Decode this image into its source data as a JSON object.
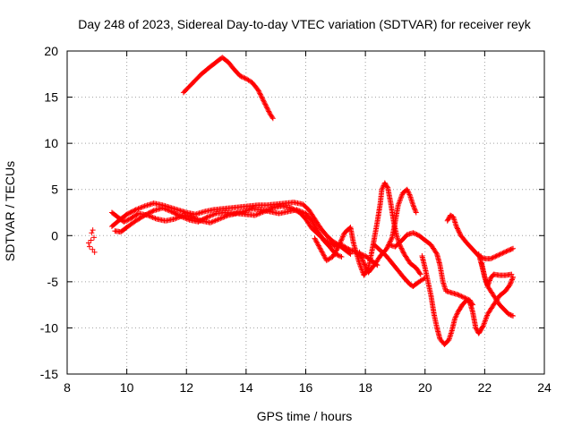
{
  "chart_data": {
    "type": "scatter",
    "title": "Day 248 of 2023, Sidereal Day-to-day VTEC variation (SDTVAR) for receiver reyk",
    "xlabel": "GPS time / hours",
    "ylabel": "SDTVAR / TECUs",
    "xlim": [
      8,
      24
    ],
    "ylim": [
      -15,
      20
    ],
    "xticks": [
      8,
      10,
      12,
      14,
      16,
      18,
      20,
      22,
      24
    ],
    "yticks": [
      -15,
      -10,
      -5,
      0,
      5,
      10,
      15,
      20
    ],
    "grid": true,
    "marker": "+",
    "color": "#ff0000",
    "series": [
      {
        "name": "isolated-points",
        "points": [
          [
            8.72,
            -0.8
          ],
          [
            8.75,
            -1.2
          ],
          [
            8.8,
            -0.5
          ],
          [
            8.82,
            0.3
          ],
          [
            8.85,
            -1.5
          ],
          [
            8.86,
            0.6
          ],
          [
            8.9,
            -0.2
          ],
          [
            8.92,
            -1.8
          ]
        ]
      },
      {
        "name": "sat-high-arc",
        "points": [
          [
            11.9,
            15.5
          ],
          [
            12.2,
            16.5
          ],
          [
            12.5,
            17.5
          ],
          [
            12.8,
            18.3
          ],
          [
            13.0,
            18.8
          ],
          [
            13.2,
            19.3
          ],
          [
            13.4,
            18.8
          ],
          [
            13.6,
            18.0
          ],
          [
            13.8,
            17.3
          ],
          [
            14.0,
            17.0
          ],
          [
            14.2,
            16.6
          ],
          [
            14.4,
            15.8
          ],
          [
            14.6,
            14.5
          ],
          [
            14.8,
            13.2
          ],
          [
            14.9,
            12.7
          ]
        ]
      },
      {
        "name": "sat-a",
        "points": [
          [
            9.5,
            1.0
          ],
          [
            9.8,
            1.8
          ],
          [
            10.0,
            2.3
          ],
          [
            10.3,
            2.8
          ],
          [
            10.6,
            3.2
          ],
          [
            10.9,
            3.5
          ],
          [
            11.2,
            3.3
          ],
          [
            11.5,
            3.0
          ],
          [
            11.8,
            2.7
          ],
          [
            12.0,
            2.5
          ],
          [
            12.3,
            2.3
          ],
          [
            12.6,
            2.6
          ],
          [
            12.9,
            2.8
          ],
          [
            13.2,
            2.9
          ],
          [
            13.5,
            3.0
          ],
          [
            13.8,
            3.1
          ],
          [
            14.1,
            3.2
          ],
          [
            14.4,
            3.3
          ],
          [
            14.7,
            3.3
          ],
          [
            15.0,
            3.4
          ],
          [
            15.3,
            3.5
          ],
          [
            15.6,
            3.6
          ],
          [
            15.9,
            3.4
          ],
          [
            16.1,
            2.8
          ],
          [
            16.3,
            1.8
          ],
          [
            16.5,
            0.8
          ],
          [
            16.7,
            0.0
          ],
          [
            16.9,
            -0.6
          ],
          [
            17.1,
            -1.0
          ],
          [
            17.3,
            -1.5
          ],
          [
            17.5,
            -2.0
          ]
        ]
      },
      {
        "name": "sat-b",
        "points": [
          [
            9.5,
            2.5
          ],
          [
            9.7,
            2.0
          ],
          [
            9.9,
            1.5
          ],
          [
            10.1,
            1.8
          ],
          [
            10.4,
            2.4
          ],
          [
            10.7,
            2.2
          ],
          [
            11.0,
            1.8
          ],
          [
            11.3,
            1.6
          ],
          [
            11.6,
            1.8
          ],
          [
            11.9,
            2.2
          ],
          [
            12.2,
            2.0
          ],
          [
            12.5,
            1.6
          ],
          [
            12.8,
            1.4
          ],
          [
            13.1,
            1.8
          ],
          [
            13.4,
            2.2
          ],
          [
            13.7,
            2.4
          ],
          [
            14.0,
            2.3
          ],
          [
            14.3,
            2.2
          ],
          [
            14.6,
            2.6
          ],
          [
            14.9,
            3.0
          ],
          [
            15.2,
            3.2
          ],
          [
            15.5,
            3.0
          ],
          [
            15.8,
            2.5
          ],
          [
            16.0,
            1.8
          ],
          [
            16.2,
            0.8
          ],
          [
            16.4,
            0.2
          ],
          [
            16.6,
            -0.4
          ],
          [
            16.8,
            -0.8
          ],
          [
            17.0,
            -1.2
          ],
          [
            17.2,
            -1.0
          ],
          [
            17.4,
            -1.4
          ],
          [
            17.6,
            -1.7
          ],
          [
            17.8,
            -2.0
          ],
          [
            18.0,
            -2.2
          ],
          [
            18.2,
            -2.7
          ],
          [
            18.4,
            -3.2
          ]
        ]
      },
      {
        "name": "sat-c",
        "points": [
          [
            9.6,
            0.5
          ],
          [
            9.8,
            0.4
          ],
          [
            10.0,
            0.9
          ],
          [
            10.3,
            1.6
          ],
          [
            10.6,
            2.2
          ],
          [
            10.9,
            2.7
          ],
          [
            11.2,
            3.0
          ],
          [
            11.5,
            2.6
          ],
          [
            11.8,
            2.1
          ],
          [
            12.1,
            1.7
          ],
          [
            12.4,
            1.5
          ],
          [
            12.7,
            2.0
          ],
          [
            13.0,
            2.4
          ],
          [
            13.3,
            2.5
          ],
          [
            13.6,
            2.4
          ],
          [
            13.9,
            2.6
          ],
          [
            14.2,
            2.9
          ],
          [
            14.5,
            2.8
          ],
          [
            14.8,
            2.6
          ],
          [
            15.1,
            2.4
          ],
          [
            15.4,
            2.6
          ],
          [
            15.7,
            2.8
          ],
          [
            16.0,
            2.4
          ],
          [
            16.2,
            1.6
          ],
          [
            16.4,
            0.5
          ],
          [
            16.6,
            -0.5
          ],
          [
            16.8,
            -1.2
          ],
          [
            17.0,
            -2.0
          ],
          [
            17.2,
            -2.3
          ]
        ]
      },
      {
        "name": "sat-d",
        "points": [
          [
            16.3,
            -0.3
          ],
          [
            16.5,
            -1.5
          ],
          [
            16.7,
            -2.7
          ],
          [
            16.9,
            -2.3
          ],
          [
            17.1,
            -1.2
          ],
          [
            17.3,
            0.3
          ],
          [
            17.5,
            0.9
          ],
          [
            17.6,
            -0.8
          ],
          [
            17.8,
            -3.0
          ],
          [
            17.95,
            -4.3
          ],
          [
            18.1,
            -3.5
          ],
          [
            18.2,
            -2.0
          ],
          [
            18.3,
            -0.3
          ],
          [
            18.4,
            1.5
          ],
          [
            18.5,
            3.5
          ],
          [
            18.55,
            5.0
          ],
          [
            18.65,
            5.7
          ],
          [
            18.75,
            5.2
          ],
          [
            18.85,
            3.5
          ],
          [
            18.95,
            1.5
          ],
          [
            19.05,
            0.0
          ],
          [
            19.15,
            -1.0
          ],
          [
            19.3,
            -2.0
          ],
          [
            19.5,
            -3.0
          ],
          [
            19.7,
            -3.5
          ],
          [
            19.85,
            -4.2
          ]
        ]
      },
      {
        "name": "sat-e",
        "points": [
          [
            17.8,
            -1.8
          ],
          [
            17.95,
            -3.0
          ],
          [
            18.1,
            -4.0
          ],
          [
            18.3,
            -3.2
          ],
          [
            18.5,
            -2.2
          ],
          [
            18.7,
            -1.5
          ],
          [
            18.9,
            -0.2
          ],
          [
            19.0,
            1.5
          ],
          [
            19.1,
            3.3
          ],
          [
            19.25,
            4.6
          ],
          [
            19.4,
            5.0
          ],
          [
            19.5,
            4.3
          ],
          [
            19.6,
            3.3
          ],
          [
            19.7,
            2.5
          ]
        ]
      },
      {
        "name": "sat-f",
        "points": [
          [
            18.3,
            -1.0
          ],
          [
            18.5,
            -1.6
          ],
          [
            18.7,
            -2.2
          ],
          [
            18.9,
            -3.0
          ],
          [
            19.1,
            -3.8
          ],
          [
            19.3,
            -4.6
          ],
          [
            19.5,
            -5.3
          ],
          [
            19.6,
            -5.5
          ],
          [
            19.8,
            -5.0
          ],
          [
            20.0,
            -4.6
          ]
        ]
      },
      {
        "name": "sat-g",
        "points": [
          [
            18.8,
            -1.0
          ],
          [
            19.0,
            -1.2
          ],
          [
            19.2,
            -0.6
          ],
          [
            19.4,
            0.1
          ],
          [
            19.6,
            0.3
          ],
          [
            19.8,
            0.0
          ],
          [
            20.0,
            -0.5
          ],
          [
            20.2,
            -1.0
          ],
          [
            20.4,
            -2.0
          ],
          [
            20.5,
            -3.2
          ],
          [
            20.6,
            -5.0
          ],
          [
            20.7,
            -6.0
          ],
          [
            20.9,
            -6.2
          ],
          [
            21.1,
            -6.4
          ],
          [
            21.3,
            -6.7
          ],
          [
            21.5,
            -7.0
          ],
          [
            21.6,
            -7.5
          ]
        ]
      },
      {
        "name": "sat-h",
        "points": [
          [
            19.9,
            -2.2
          ],
          [
            20.0,
            -3.5
          ],
          [
            20.1,
            -5.0
          ],
          [
            20.2,
            -6.5
          ],
          [
            20.3,
            -8.5
          ],
          [
            20.4,
            -10.0
          ],
          [
            20.5,
            -11.2
          ],
          [
            20.65,
            -11.8
          ],
          [
            20.8,
            -11.3
          ],
          [
            20.9,
            -10.3
          ],
          [
            21.0,
            -9.0
          ],
          [
            21.1,
            -8.3
          ],
          [
            21.25,
            -7.5
          ],
          [
            21.4,
            -7.0
          ],
          [
            21.5,
            -7.2
          ],
          [
            21.6,
            -8.3
          ],
          [
            21.7,
            -10.0
          ],
          [
            21.8,
            -10.6
          ],
          [
            21.95,
            -9.8
          ],
          [
            22.1,
            -8.5
          ],
          [
            22.3,
            -7.5
          ],
          [
            22.5,
            -6.5
          ],
          [
            22.7,
            -6.0
          ],
          [
            22.85,
            -5.3
          ],
          [
            22.95,
            -4.5
          ]
        ]
      },
      {
        "name": "sat-i",
        "points": [
          [
            20.75,
            1.6
          ],
          [
            20.85,
            2.2
          ],
          [
            20.95,
            2.0
          ],
          [
            21.05,
            1.0
          ],
          [
            21.2,
            0.0
          ],
          [
            21.4,
            -0.8
          ],
          [
            21.6,
            -1.5
          ],
          [
            21.8,
            -2.2
          ],
          [
            22.0,
            -2.5
          ],
          [
            22.2,
            -2.5
          ],
          [
            22.4,
            -2.2
          ],
          [
            22.6,
            -1.9
          ],
          [
            22.8,
            -1.6
          ],
          [
            22.95,
            -1.4
          ]
        ]
      },
      {
        "name": "sat-j",
        "points": [
          [
            21.8,
            -2.0
          ],
          [
            21.9,
            -3.2
          ],
          [
            22.0,
            -4.5
          ],
          [
            22.1,
            -5.4
          ],
          [
            22.2,
            -4.6
          ],
          [
            22.3,
            -4.2
          ],
          [
            22.5,
            -4.3
          ],
          [
            22.7,
            -4.3
          ],
          [
            22.9,
            -4.2
          ]
        ]
      },
      {
        "name": "sat-k",
        "points": [
          [
            21.9,
            -3.0
          ],
          [
            22.0,
            -4.5
          ],
          [
            22.1,
            -5.5
          ],
          [
            22.2,
            -6.0
          ],
          [
            22.3,
            -6.5
          ],
          [
            22.4,
            -7.0
          ],
          [
            22.5,
            -7.5
          ],
          [
            22.65,
            -8.0
          ],
          [
            22.8,
            -8.5
          ],
          [
            22.95,
            -8.7
          ]
        ]
      }
    ]
  }
}
